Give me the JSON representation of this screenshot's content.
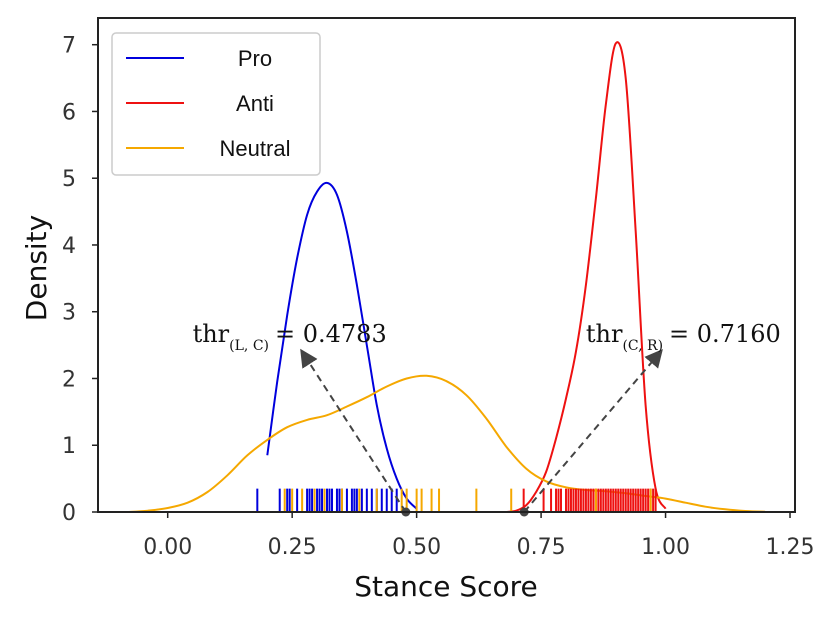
{
  "chart_data": {
    "type": "line",
    "title": "",
    "xlabel": "Stance Score",
    "ylabel": "Density",
    "xlim": [
      -0.14,
      1.26
    ],
    "ylim": [
      0,
      7.4
    ],
    "xticks": [
      0.0,
      0.25,
      0.5,
      0.75,
      1.0,
      1.25
    ],
    "xtick_labels": [
      "0.00",
      "0.25",
      "0.50",
      "0.75",
      "1.00",
      "1.25"
    ],
    "yticks": [
      0,
      1,
      2,
      3,
      4,
      5,
      6,
      7
    ],
    "ytick_labels": [
      "0",
      "1",
      "2",
      "3",
      "4",
      "5",
      "6",
      "7"
    ],
    "grid": false,
    "legend_position": "top-left",
    "series": [
      {
        "name": "Pro",
        "color": "#0000dd",
        "x": [
          0.2,
          0.22,
          0.24,
          0.26,
          0.28,
          0.3,
          0.32,
          0.34,
          0.36,
          0.38,
          0.4,
          0.42,
          0.44,
          0.46,
          0.48,
          0.5
        ],
        "y": [
          0.85,
          1.95,
          2.95,
          3.8,
          4.45,
          4.8,
          4.93,
          4.75,
          4.2,
          3.4,
          2.5,
          1.6,
          0.95,
          0.5,
          0.2,
          0.05
        ]
      },
      {
        "name": "Anti",
        "color": "#ee1111",
        "x": [
          0.68,
          0.7,
          0.72,
          0.74,
          0.76,
          0.78,
          0.8,
          0.82,
          0.84,
          0.86,
          0.88,
          0.9,
          0.92,
          0.94,
          0.96,
          0.98,
          1.0
        ],
        "y": [
          0.0,
          0.02,
          0.1,
          0.3,
          0.6,
          1.1,
          1.7,
          2.4,
          3.4,
          4.7,
          6.1,
          7.02,
          6.5,
          4.2,
          1.6,
          0.35,
          0.05
        ]
      },
      {
        "name": "Neutral",
        "color": "#f5a800",
        "x": [
          -0.08,
          -0.04,
          0.0,
          0.04,
          0.08,
          0.12,
          0.16,
          0.2,
          0.24,
          0.28,
          0.32,
          0.36,
          0.4,
          0.44,
          0.48,
          0.52,
          0.56,
          0.6,
          0.64,
          0.68,
          0.72,
          0.76,
          0.8,
          0.84,
          0.88,
          0.92,
          0.96,
          1.0,
          1.04,
          1.08,
          1.12,
          1.16,
          1.2
        ],
        "y": [
          0.0,
          0.02,
          0.06,
          0.14,
          0.3,
          0.55,
          0.85,
          1.08,
          1.27,
          1.38,
          1.45,
          1.58,
          1.72,
          1.88,
          2.0,
          2.04,
          1.96,
          1.75,
          1.4,
          0.98,
          0.65,
          0.46,
          0.37,
          0.33,
          0.31,
          0.28,
          0.24,
          0.2,
          0.14,
          0.08,
          0.04,
          0.015,
          0.005
        ]
      }
    ],
    "rugs": [
      {
        "name": "Pro",
        "color": "#0000dd",
        "values": [
          0.18,
          0.225,
          0.24,
          0.245,
          0.26,
          0.28,
          0.285,
          0.29,
          0.3,
          0.305,
          0.31,
          0.32,
          0.325,
          0.33,
          0.34,
          0.345,
          0.35,
          0.36,
          0.37,
          0.375,
          0.38,
          0.39,
          0.4,
          0.41,
          0.42,
          0.43,
          0.44,
          0.45,
          0.46
        ]
      },
      {
        "name": "Anti",
        "color": "#ee1111",
        "values": [
          0.715,
          0.755,
          0.77,
          0.78,
          0.785,
          0.79,
          0.8,
          0.805,
          0.81,
          0.815,
          0.82,
          0.825,
          0.83,
          0.835,
          0.84,
          0.845,
          0.85,
          0.855,
          0.86,
          0.865,
          0.87,
          0.875,
          0.88,
          0.885,
          0.89,
          0.895,
          0.9,
          0.905,
          0.91,
          0.915,
          0.92,
          0.925,
          0.93,
          0.935,
          0.94,
          0.945,
          0.95,
          0.955,
          0.96,
          0.965,
          0.97,
          0.975,
          0.98
        ]
      },
      {
        "name": "Neutral",
        "color": "#f5a800",
        "values": [
          0.235,
          0.25,
          0.27,
          0.295,
          0.315,
          0.35,
          0.385,
          0.42,
          0.47,
          0.48,
          0.5,
          0.51,
          0.53,
          0.545,
          0.62,
          0.69,
          0.86,
          0.97
        ]
      }
    ],
    "rug_height": 0.35,
    "thresholds": [
      {
        "label_base": "thr",
        "label_sub": "(L, C)",
        "label_value": "= 0.4783",
        "x": 0.4783,
        "arrow_to": [
          0.27,
          2.4
        ]
      },
      {
        "label_base": "thr",
        "label_sub": "(C, R)",
        "label_value": "= 0.7160",
        "x": 0.716,
        "arrow_to": [
          0.99,
          2.4
        ]
      }
    ],
    "annotation_positions": [
      [
        0.05,
        2.55
      ],
      [
        0.84,
        2.55
      ]
    ]
  }
}
